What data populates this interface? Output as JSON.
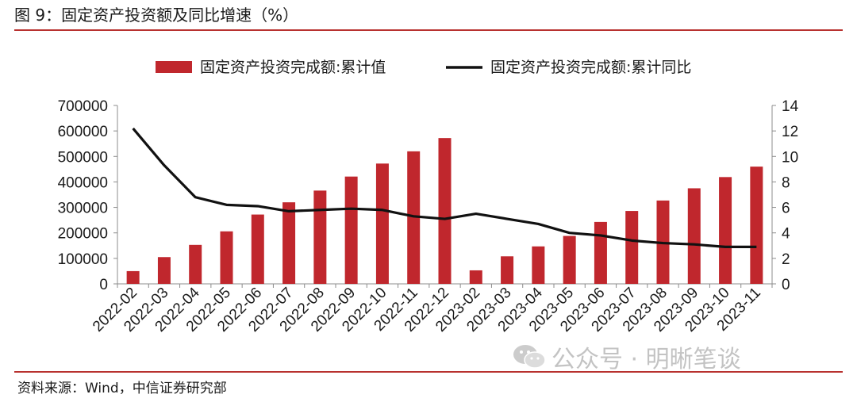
{
  "header": {
    "title": "图 9：固定资产投资额及同比增速（%）"
  },
  "footer": {
    "source": "资料来源：Wind，中信证券研究部"
  },
  "watermark": {
    "text": "公众号 · 明晰笔谈",
    "icon": "wechat-icon"
  },
  "colors": {
    "bar": "#c0272d",
    "line": "#111111",
    "rule": "#b8312f"
  },
  "chart_data": {
    "type": "bar",
    "title": "图 9：固定资产投资额及同比增速（%）",
    "categories": [
      "2022-02",
      "2022-03",
      "2022-04",
      "2022-05",
      "2022-06",
      "2022-07",
      "2022-08",
      "2022-09",
      "2022-10",
      "2022-11",
      "2022-12",
      "2023-02",
      "2023-03",
      "2023-04",
      "2023-05",
      "2023-06",
      "2023-07",
      "2023-08",
      "2023-09",
      "2023-10",
      "2023-11"
    ],
    "series": [
      {
        "name": "固定资产投资完成额:累计值",
        "type": "bar",
        "axis": "left",
        "values": [
          50000,
          105000,
          153000,
          206000,
          272000,
          320000,
          366000,
          421000,
          472000,
          520000,
          572000,
          53000,
          108000,
          147000,
          188000,
          243000,
          286000,
          327000,
          375000,
          419000,
          460000
        ]
      },
      {
        "name": "固定资产投资完成额:累计同比",
        "type": "line",
        "axis": "right",
        "values": [
          12.2,
          9.3,
          6.8,
          6.2,
          6.1,
          5.7,
          5.8,
          5.9,
          5.8,
          5.3,
          5.1,
          5.5,
          5.1,
          4.7,
          4.0,
          3.8,
          3.4,
          3.2,
          3.1,
          2.9,
          2.9
        ]
      }
    ],
    "y_left": {
      "ylim": [
        0,
        700000
      ],
      "ticks": [
        "0",
        "100000",
        "200000",
        "300000",
        "400000",
        "500000",
        "600000",
        "700000"
      ]
    },
    "y_right": {
      "ylim": [
        0,
        14
      ],
      "ticks": [
        "0",
        "2",
        "4",
        "6",
        "8",
        "10",
        "12",
        "14"
      ]
    },
    "legend": {
      "placement": "top-center"
    },
    "grid": false
  }
}
